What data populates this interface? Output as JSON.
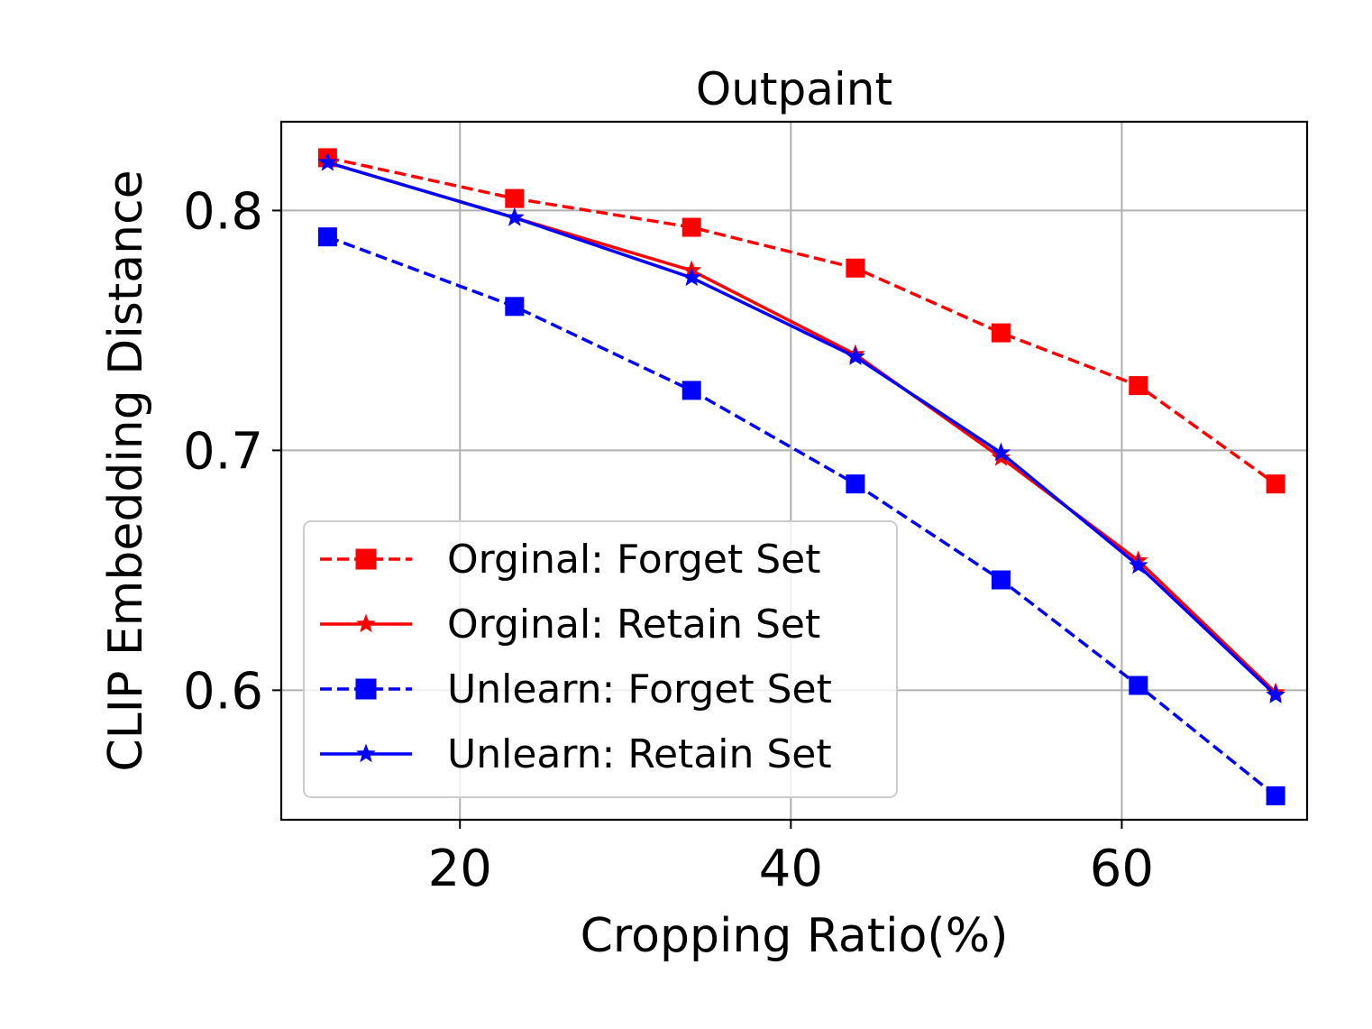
{
  "chart_data": {
    "type": "line",
    "title": "Outpaint",
    "xlabel": "Cropping Ratio(%)",
    "ylabel": "CLIP Embedding Distance",
    "xlim": [
      9.2,
      71.2
    ],
    "ylim": [
      0.546,
      0.837
    ],
    "xticks": [
      20,
      40,
      60
    ],
    "xtick_labels": [
      "20",
      "40",
      "60"
    ],
    "yticks": [
      0.6,
      0.7,
      0.8
    ],
    "ytick_labels": [
      "0.6",
      "0.7",
      "0.8"
    ],
    "grid": true,
    "legend_position": "lower-left",
    "x": [
      12,
      23.3,
      34,
      43.9,
      52.7,
      61,
      69.3
    ],
    "series": [
      {
        "name": "Orginal: Forget Set",
        "color": "#ff0000",
        "linestyle": "dashed",
        "marker": "square",
        "values": [
          0.822,
          0.805,
          0.793,
          0.776,
          0.749,
          0.727,
          0.686
        ]
      },
      {
        "name": "Orginal: Retain Set",
        "color": "#ff0000",
        "linestyle": "solid",
        "marker": "star",
        "values": [
          0.82,
          0.797,
          0.775,
          0.74,
          0.697,
          0.654,
          0.599
        ]
      },
      {
        "name": "Unlearn: Forget Set",
        "color": "#0000ff",
        "linestyle": "dashed",
        "marker": "square",
        "values": [
          0.789,
          0.76,
          0.725,
          0.686,
          0.646,
          0.602,
          0.556
        ]
      },
      {
        "name": "Unlearn: Retain Set",
        "color": "#0000ff",
        "linestyle": "solid",
        "marker": "star",
        "values": [
          0.82,
          0.797,
          0.772,
          0.739,
          0.699,
          0.652,
          0.598
        ]
      }
    ]
  }
}
